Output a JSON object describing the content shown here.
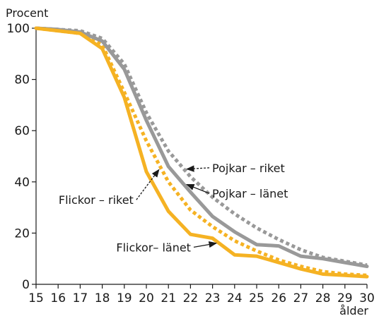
{
  "chart_data": {
    "type": "line",
    "ylabel": "Procent",
    "xlabel": "ålder",
    "ylim": [
      0,
      100
    ],
    "xlim": [
      15,
      30
    ],
    "yticks": [
      0,
      20,
      40,
      60,
      80,
      100
    ],
    "x": [
      15,
      16,
      17,
      18,
      19,
      20,
      21,
      22,
      23,
      24,
      25,
      26,
      27,
      28,
      29,
      30
    ],
    "grid": false,
    "series": [
      {
        "name": "Pojkar – riket",
        "color": "#999999",
        "dashed": true,
        "values": [
          100,
          99.5,
          99,
          96,
          86,
          67,
          52,
          42,
          34,
          27.5,
          22,
          17.5,
          13.5,
          10.5,
          9,
          7.5
        ]
      },
      {
        "name": "Pojkar – länet",
        "color": "#999999",
        "dashed": false,
        "values": [
          100,
          99.5,
          98.5,
          95,
          84,
          64,
          46,
          36,
          26.5,
          20.5,
          15.5,
          15,
          11,
          10,
          8.5,
          7
        ]
      },
      {
        "name": "Flickor – riket",
        "color": "#f5b223",
        "dashed": true,
        "values": [
          100,
          99,
          98,
          93.5,
          75,
          56,
          40,
          29,
          22.5,
          17,
          13,
          9.5,
          7,
          5,
          4,
          3.5
        ]
      },
      {
        "name": "Flickor– länet",
        "color": "#f5b223",
        "dashed": false,
        "values": [
          100,
          99,
          98,
          92,
          73,
          44,
          28.5,
          19.5,
          18,
          11.5,
          11,
          8.5,
          6,
          4,
          3.5,
          3
        ]
      }
    ],
    "annotations": [
      {
        "text": "Pojkar – riket",
        "series": 0,
        "x": 21.7,
        "y": 45.5,
        "side": "right"
      },
      {
        "text": "Pojkar – länet",
        "series": 1,
        "x": 21.7,
        "y": 35.5,
        "side": "right"
      },
      {
        "text": "Flickor – riket",
        "series": 2,
        "x": 20.7,
        "y": 33,
        "side": "left"
      },
      {
        "text": "Flickor– länet",
        "series": 3,
        "x": 23.3,
        "y": 14.5,
        "side": "left"
      }
    ]
  }
}
